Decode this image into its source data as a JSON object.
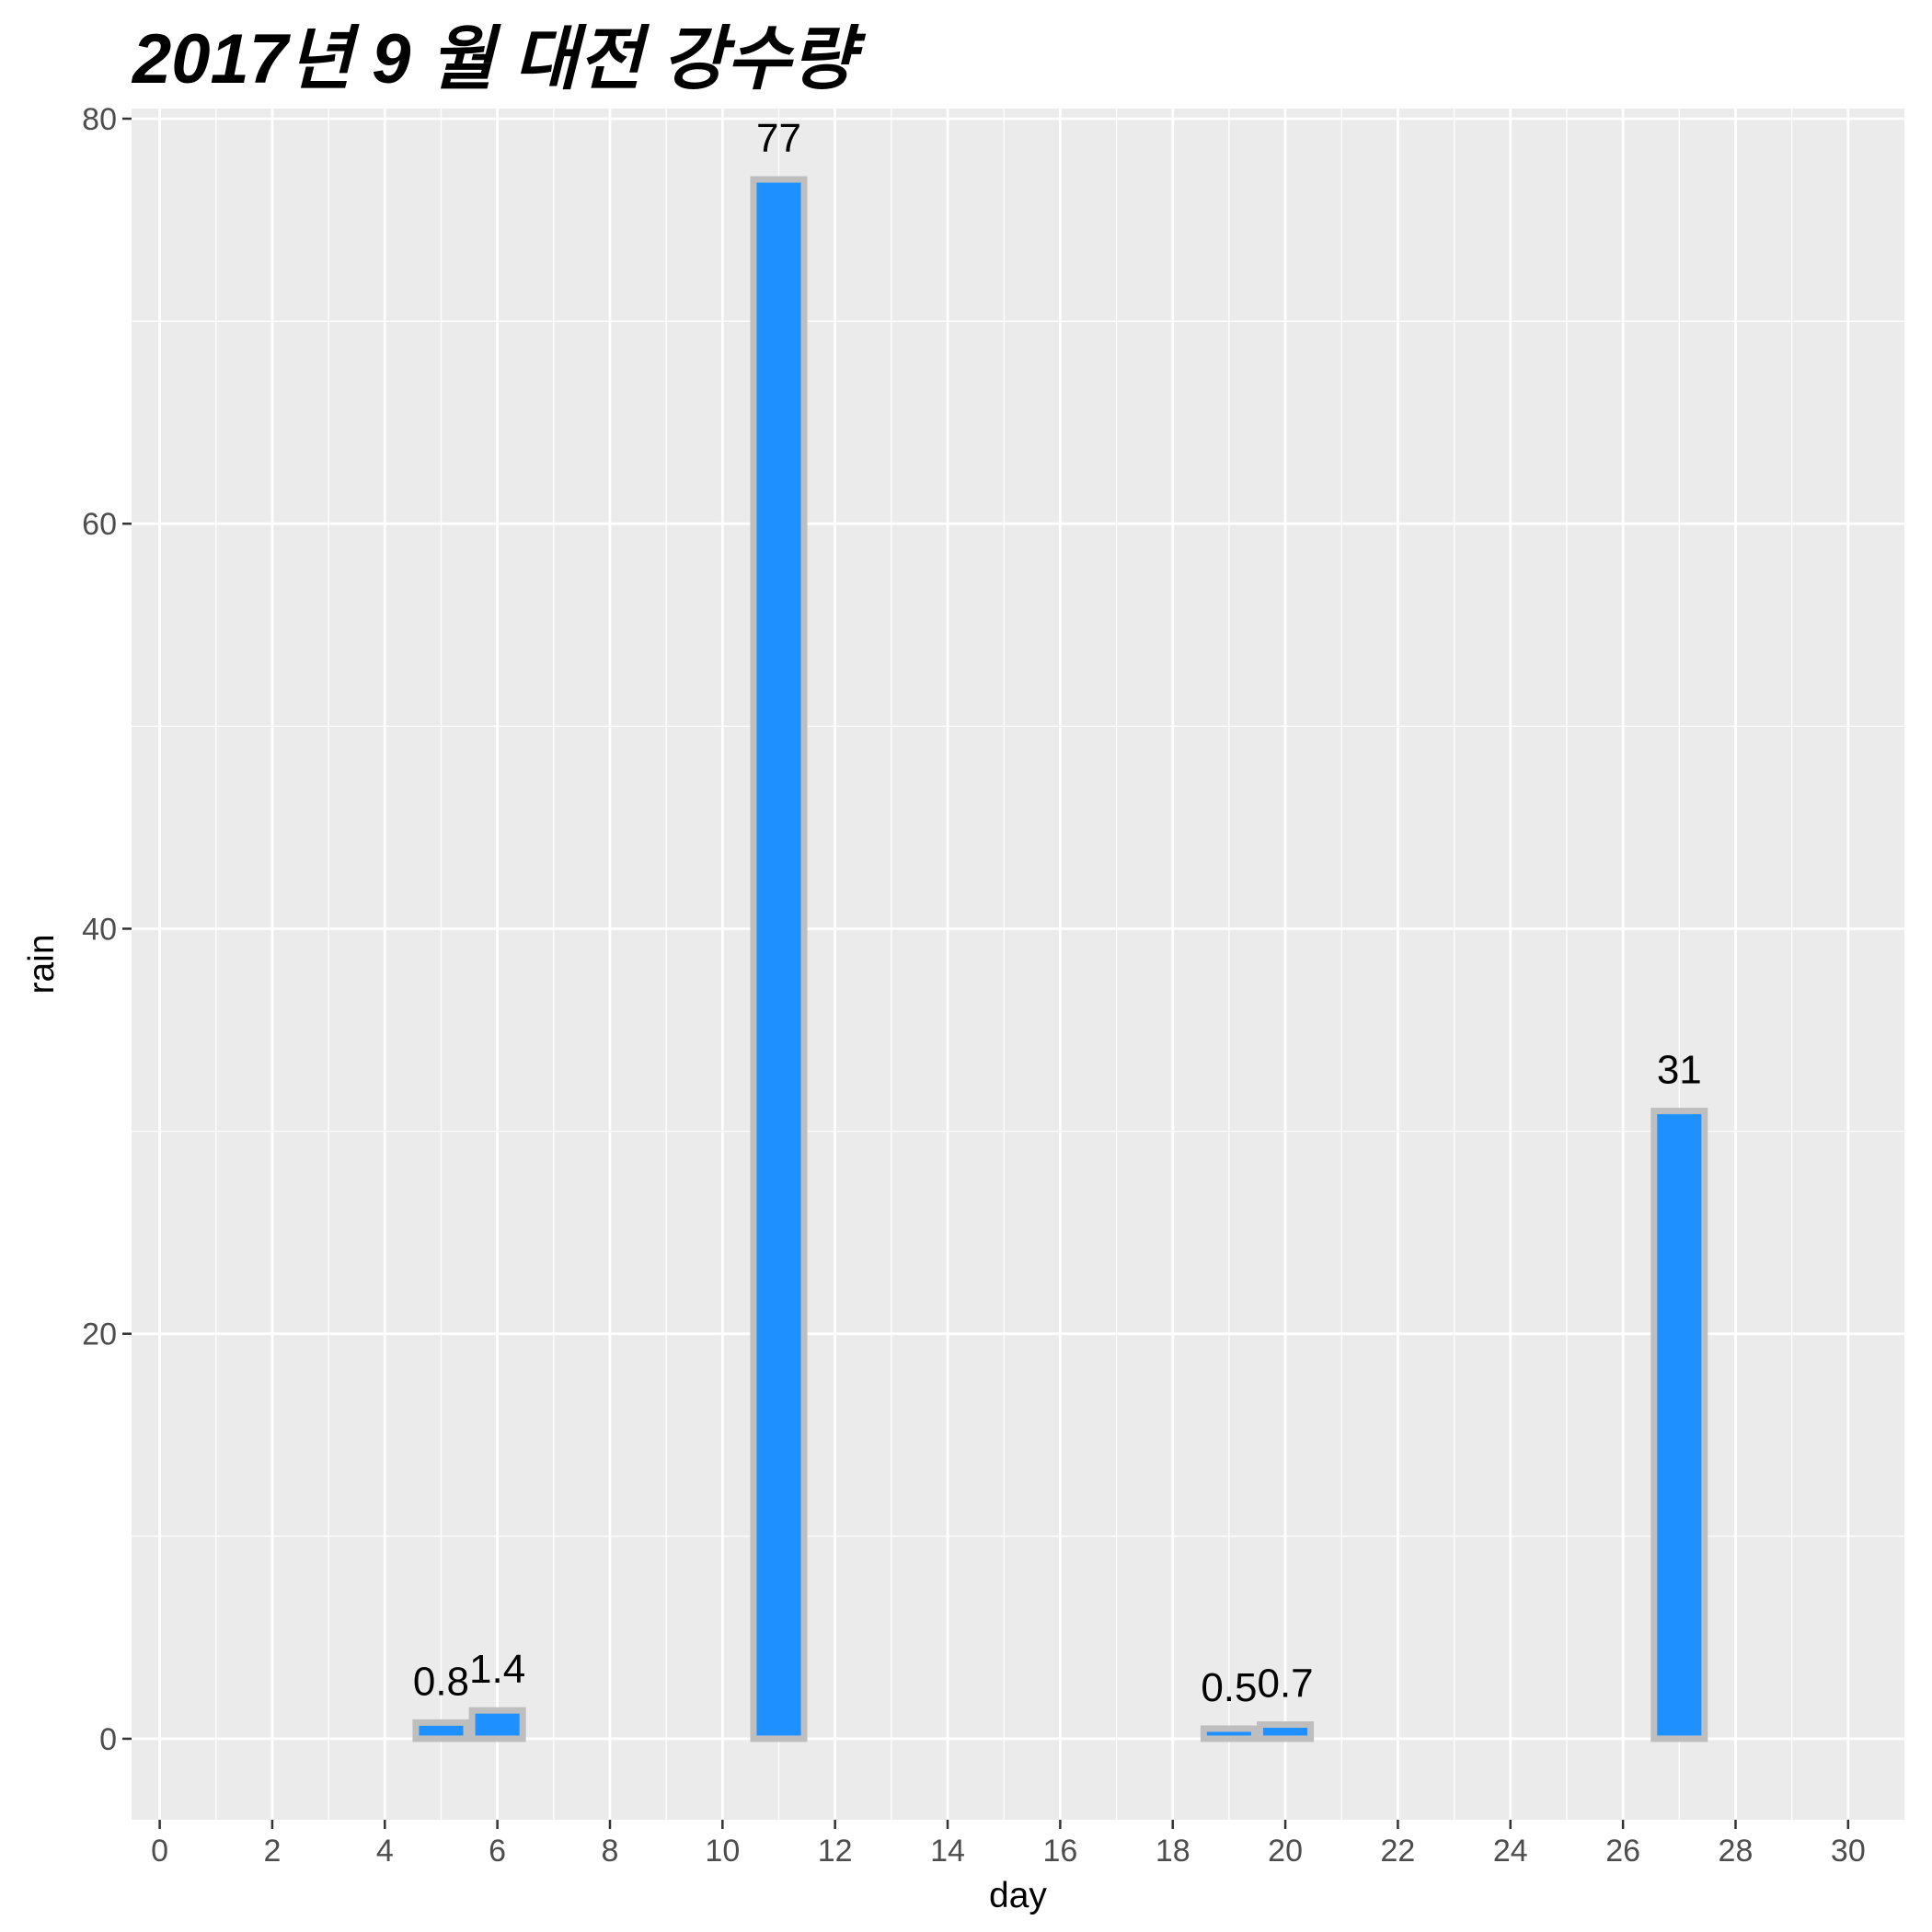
{
  "chart_data": {
    "type": "bar",
    "title": "2017년 9 월 대전 강수량",
    "xlabel": "day",
    "ylabel": "rain",
    "x": [
      5,
      6,
      11,
      19,
      20,
      27
    ],
    "values": [
      0.8,
      1.4,
      77,
      0.5,
      0.7,
      31
    ],
    "data_labels": [
      "0.8",
      "1.4",
      "77",
      "0.5",
      "0.7",
      "31"
    ],
    "xlim": [
      -0.5,
      31
    ],
    "ylim": [
      -4,
      80.5
    ],
    "x_ticks": [
      0,
      2,
      4,
      6,
      8,
      10,
      12,
      14,
      16,
      18,
      20,
      22,
      24,
      26,
      28,
      30
    ],
    "y_ticks": [
      0,
      20,
      40,
      60,
      80
    ],
    "grid": true,
    "legend": "none",
    "colors": {
      "bar_fill": "#1e90ff",
      "bar_outline": "#bebebe",
      "panel": "#ebebeb",
      "grid": "#ffffff"
    }
  }
}
